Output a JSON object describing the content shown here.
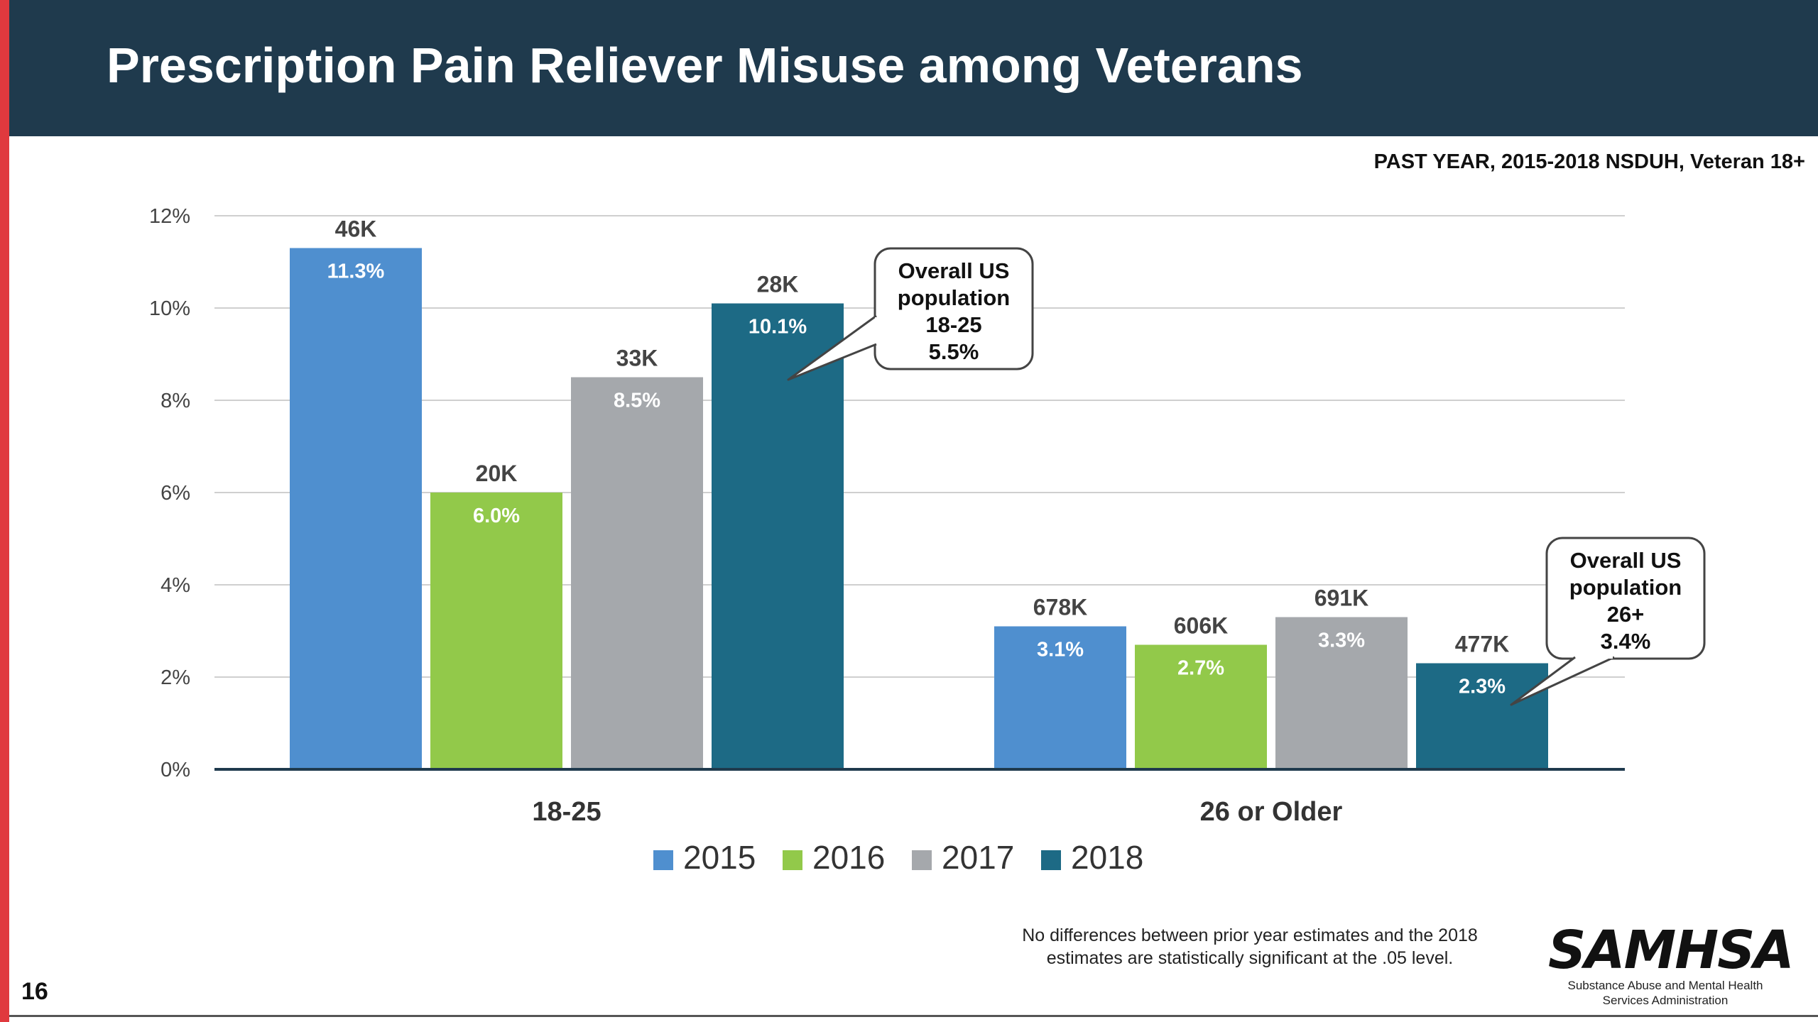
{
  "title": "Prescription Pain Reliever Misuse among Veterans",
  "subtitle": "PAST YEAR, 2015-2018 NSDUH, Veteran 18+",
  "slide_number": "16",
  "footnote_lines": [
    "No differences between prior year estimates and the 2018",
    "estimates are statistically significant at the .05 level."
  ],
  "logo": {
    "word": "SAMHSA",
    "sub_lines": [
      "Substance Abuse and Mental Health",
      "Services Administration"
    ]
  },
  "colors": {
    "header_bg": "#1f3a4d",
    "accent_red": "#e0393e",
    "2015": "#4f8fcf",
    "2016": "#92c94a",
    "2017": "#a5a8ac",
    "2018": "#1d6a85"
  },
  "chart_data": {
    "type": "bar",
    "categories": [
      "18-25",
      "26 or Older"
    ],
    "series": [
      {
        "name": "2015",
        "values": [
          11.3,
          3.1
        ],
        "value_labels": [
          "11.3%",
          "3.1%"
        ],
        "count_labels": [
          "46K",
          "678K"
        ]
      },
      {
        "name": "2016",
        "values": [
          6.0,
          2.7
        ],
        "value_labels": [
          "6.0%",
          "2.7%"
        ],
        "count_labels": [
          "20K",
          "606K"
        ]
      },
      {
        "name": "2017",
        "values": [
          8.5,
          3.3
        ],
        "value_labels": [
          "8.5%",
          "3.3%"
        ],
        "count_labels": [
          "33K",
          "691K"
        ]
      },
      {
        "name": "2018",
        "values": [
          10.1,
          2.3
        ],
        "value_labels": [
          "10.1%",
          "2.3%"
        ],
        "count_labels": [
          "28K",
          "477K"
        ]
      }
    ],
    "yticks": [
      0,
      2,
      4,
      6,
      8,
      10,
      12
    ],
    "ytick_labels": [
      "0%",
      "2%",
      "4%",
      "6%",
      "8%",
      "10%",
      "12%"
    ],
    "ylim": [
      0,
      12
    ],
    "grid": true,
    "legend_position": "bottom",
    "annotations": [
      {
        "category": "18-25",
        "lines": [
          "Overall US",
          "population",
          "18-25",
          "5.5%"
        ],
        "value": 5.5
      },
      {
        "category": "26 or Older",
        "lines": [
          "Overall US",
          "population",
          "26+",
          "3.4%"
        ],
        "value": 3.4
      }
    ]
  }
}
